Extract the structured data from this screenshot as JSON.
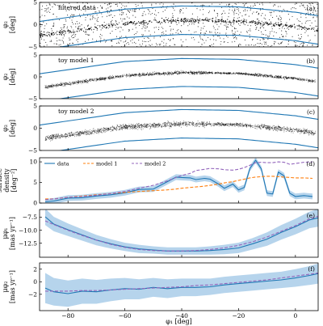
{
  "chart_data": [
    {
      "type": "scatter",
      "panel_label": "(a)",
      "annotation": "filtered data",
      "ylabel": [
        "φ₂",
        "[deg]"
      ],
      "ylim": [
        -5,
        5
      ],
      "yticks": [
        -5,
        0,
        5
      ],
      "stream_center": {
        "phi1": [
          -90,
          -60,
          -40,
          -20,
          0,
          10
        ],
        "phi2": [
          -2.5,
          0.3,
          1.0,
          0.8,
          -0.4,
          -1.4
        ]
      },
      "boundary_half_width": 3.2,
      "point_density": "high",
      "boundary_color": "#1f77b4",
      "point_color": "#000000"
    },
    {
      "type": "scatter",
      "panel_label": "(b)",
      "annotation": "toy model 1",
      "ylabel": [
        "φ₂",
        "[deg]"
      ],
      "ylim": [
        -5,
        5
      ],
      "yticks": [
        -5,
        0,
        5
      ],
      "stream_center": {
        "phi1": [
          -90,
          -60,
          -40,
          -20,
          0,
          10
        ],
        "phi2": [
          -2.5,
          0.3,
          1.0,
          0.8,
          -0.4,
          -1.4
        ]
      },
      "boundary_half_width": 3.2,
      "stream_width": 0.35,
      "boundary_color": "#1f77b4",
      "point_color": "#000000"
    },
    {
      "type": "scatter",
      "panel_label": "(c)",
      "annotation": "toy model 2",
      "ylabel": [
        "φ₂",
        "[deg]"
      ],
      "ylim": [
        -5,
        5
      ],
      "yticks": [
        -5,
        0,
        5
      ],
      "stream_center": {
        "phi1": [
          -90,
          -60,
          -40,
          -20,
          0,
          10
        ],
        "phi2": [
          -2.5,
          0.3,
          1.0,
          0.8,
          -0.4,
          -1.4
        ]
      },
      "boundary_half_width": 3.2,
      "stream_width": 0.6,
      "boundary_color": "#1f77b4",
      "point_color": "#000000"
    },
    {
      "type": "line",
      "panel_label": "(d)",
      "ylabel": [
        "surface",
        "density",
        "[deg⁻²]"
      ],
      "ylim": [
        0,
        11
      ],
      "yticks": [
        0,
        5,
        10
      ],
      "legend": {
        "placement": "top-left",
        "entries": [
          "data",
          "model 1",
          "model 2"
        ]
      },
      "x": [
        -88,
        -85,
        -80,
        -75,
        -70,
        -65,
        -60,
        -55,
        -50,
        -45,
        -42,
        -40,
        -37,
        -35,
        -32,
        -30,
        -27,
        -25,
        -22,
        -20,
        -18,
        -16,
        -14,
        -12,
        -10,
        -8,
        -6,
        -4,
        -2,
        0,
        3,
        6
      ],
      "series": [
        {
          "name": "data",
          "color": "#1f77b4",
          "style": "solid",
          "band": 0.7,
          "values": [
            0.3,
            0.5,
            1.2,
            1.3,
            1.7,
            2.0,
            2.5,
            3.3,
            3.4,
            5.2,
            6.3,
            6.2,
            6.1,
            5.7,
            6.0,
            5.8,
            4.6,
            3.6,
            4.6,
            3.2,
            3.8,
            8.4,
            10.4,
            8.3,
            2.4,
            2.2,
            7.5,
            6.6,
            2.4,
            1.6,
            1.8,
            1.6
          ]
        },
        {
          "name": "model 1",
          "color": "#ff7f0e",
          "style": "dashed",
          "values": [
            1.0,
            1.0,
            1.4,
            1.7,
            2.0,
            2.3,
            2.6,
            2.8,
            3.0,
            3.2,
            3.4,
            3.6,
            3.8,
            3.9,
            4.1,
            4.3,
            4.6,
            4.9,
            5.2,
            5.5,
            5.8,
            6.1,
            6.3,
            6.4,
            6.5,
            6.5,
            6.4,
            6.3,
            6.2,
            6.1,
            6.1,
            6.0
          ]
        },
        {
          "name": "model 2",
          "color": "#9467bd",
          "style": "dashed",
          "values": [
            0.8,
            1.0,
            1.4,
            1.6,
            1.9,
            2.3,
            2.8,
            3.6,
            4.3,
            5.4,
            6.2,
            6.7,
            7.2,
            7.9,
            8.2,
            8.4,
            8.3,
            8.1,
            8.0,
            8.2,
            8.6,
            9.2,
            9.8,
            9.9,
            9.8,
            9.8,
            10.0,
            9.9,
            9.4,
            9.6,
            9.9,
            10.0
          ]
        }
      ]
    },
    {
      "type": "line",
      "panel_label": "(e)",
      "ylabel": [
        "μφ₁",
        "[mas yr⁻¹]"
      ],
      "ylim": [
        -15.2,
        -6.0
      ],
      "yticks": [
        -12.5,
        -10.0,
        -7.5
      ],
      "ytick_labels": [
        "−12.5",
        "−10.0",
        "−7.5"
      ],
      "x": [
        -88,
        -85,
        -80,
        -75,
        -70,
        -65,
        -60,
        -55,
        -50,
        -45,
        -40,
        -35,
        -30,
        -25,
        -20,
        -15,
        -10,
        -5,
        0,
        5,
        8
      ],
      "series": [
        {
          "name": "data",
          "color": "#1f77b4",
          "style": "solid",
          "values": [
            -7.4,
            -8.8,
            -9.9,
            -10.9,
            -11.9,
            -12.6,
            -13.2,
            -13.6,
            -13.8,
            -14.0,
            -14.0,
            -14.0,
            -13.9,
            -13.7,
            -13.4,
            -12.6,
            -11.7,
            -10.4,
            -9.3,
            -8.0,
            -7.6
          ],
          "band": [
            1.6,
            1.4,
            1.2,
            1.1,
            1.0,
            0.9,
            0.8,
            0.8,
            0.7,
            0.7,
            0.7,
            0.7,
            0.8,
            0.9,
            1.0,
            1.1,
            1.3,
            1.4,
            1.5,
            1.6,
            1.7
          ]
        },
        {
          "name": "model",
          "color": "#9467bd",
          "style": "dashed",
          "values": [
            -8.2,
            -8.9,
            -10.0,
            -11.0,
            -11.9,
            -12.7,
            -13.3,
            -13.7,
            -13.9,
            -14.0,
            -14.0,
            -13.9,
            -13.7,
            -13.4,
            -12.9,
            -12.2,
            -11.3,
            -10.2,
            -9.1,
            -7.8,
            -7.3
          ]
        }
      ]
    },
    {
      "type": "line",
      "panel_label": "(f)",
      "ylabel": [
        "μφ₂",
        "[mas yr⁻¹]"
      ],
      "ylim": [
        -4.6,
        3.0
      ],
      "yticks": [
        -2,
        0,
        2
      ],
      "ytick_labels": [
        "−2",
        "0",
        "2"
      ],
      "xlabel": "φ₁ [deg]",
      "xlim": [
        -90,
        8
      ],
      "xticks": [
        -80,
        -60,
        -40,
        -20,
        0
      ],
      "xtick_labels": [
        "−80",
        "−60",
        "−40",
        "−20",
        "0"
      ],
      "x": [
        -88,
        -85,
        -80,
        -75,
        -70,
        -65,
        -60,
        -55,
        -50,
        -45,
        -40,
        -35,
        -30,
        -25,
        -20,
        -15,
        -10,
        -5,
        0,
        5,
        8
      ],
      "series": [
        {
          "name": "data",
          "color": "#1f77b4",
          "style": "solid",
          "values": [
            -1.0,
            -1.6,
            -1.9,
            -1.5,
            -1.6,
            -1.3,
            -1.1,
            -1.2,
            -0.9,
            -1.1,
            -0.9,
            -0.9,
            -0.8,
            -0.5,
            -0.3,
            -0.1,
            0.1,
            0.3,
            0.6,
            1.0,
            1.3
          ],
          "band": [
            2.4,
            2.2,
            2.1,
            2.0,
            1.9,
            1.8,
            1.7,
            1.6,
            1.5,
            1.5,
            1.4,
            1.4,
            1.3,
            1.3,
            1.3,
            1.3,
            1.3,
            1.3,
            1.4,
            1.5,
            1.6
          ]
        },
        {
          "name": "model",
          "color": "#9467bd",
          "style": "dashed",
          "values": [
            -1.5,
            -1.5,
            -1.5,
            -1.4,
            -1.4,
            -1.3,
            -1.2,
            -1.1,
            -1.0,
            -0.9,
            -0.8,
            -0.6,
            -0.5,
            -0.3,
            -0.1,
            0.1,
            0.3,
            0.6,
            0.9,
            1.2,
            1.4
          ]
        }
      ]
    }
  ]
}
